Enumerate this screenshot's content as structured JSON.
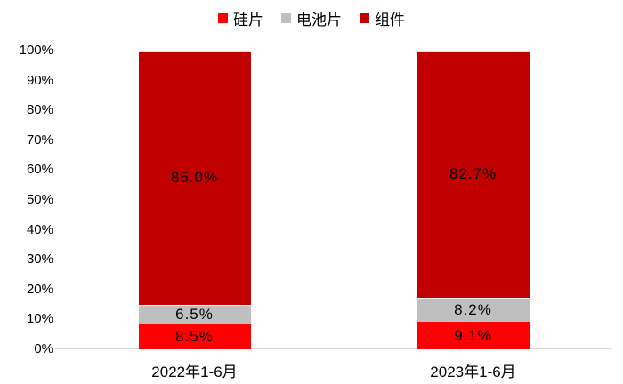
{
  "colors": {
    "silicon_red": "#ff0000",
    "cell_gray": "#bfbfbf",
    "module_dark_red": "#c00000",
    "axis_line": "#d9d9d9",
    "label_text": "#000000",
    "background": "#ffffff"
  },
  "legend": {
    "items": [
      {
        "label": "硅片",
        "color": "#ff0000"
      },
      {
        "label": "电池片",
        "color": "#bfbfbf"
      },
      {
        "label": "组件",
        "color": "#c00000"
      }
    ]
  },
  "chart_data": {
    "type": "bar",
    "stacked": true,
    "percent_stacked": true,
    "title": "",
    "xlabel": "",
    "ylabel": "",
    "categories": [
      "2022年1-6月",
      "2023年1-6月"
    ],
    "series": [
      {
        "name": "硅片",
        "color": "#ff0000",
        "values": [
          8.5,
          9.1
        ],
        "labels": [
          "8.5%",
          "9.1%"
        ]
      },
      {
        "name": "电池片",
        "color": "#bfbfbf",
        "values": [
          6.5,
          8.2
        ],
        "labels": [
          "6.5%",
          "8.2%"
        ]
      },
      {
        "name": "组件",
        "color": "#c00000",
        "values": [
          85.0,
          82.7
        ],
        "labels": [
          "85.0%",
          "82.7%"
        ]
      }
    ],
    "ylim": [
      0,
      100
    ],
    "yticks": [
      "0%",
      "10%",
      "20%",
      "30%",
      "40%",
      "50%",
      "60%",
      "70%",
      "80%",
      "90%",
      "100%"
    ],
    "ytick_values": [
      0,
      10,
      20,
      30,
      40,
      50,
      60,
      70,
      80,
      90,
      100
    ],
    "grid": false,
    "legend_position": "top"
  }
}
